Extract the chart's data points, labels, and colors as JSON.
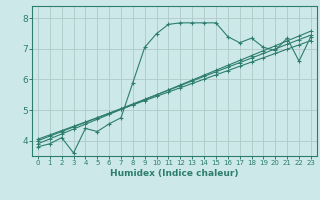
{
  "xlabel": "Humidex (Indice chaleur)",
  "bg_color": "#cce8e8",
  "grid_color": "#b0c8c8",
  "line_color": "#2d7d6f",
  "xlim": [
    -0.5,
    23.5
  ],
  "ylim": [
    3.5,
    8.4
  ],
  "xticks": [
    0,
    1,
    2,
    3,
    4,
    5,
    6,
    7,
    8,
    9,
    10,
    11,
    12,
    13,
    14,
    15,
    16,
    17,
    18,
    19,
    20,
    21,
    22,
    23
  ],
  "yticks": [
    4,
    5,
    6,
    7,
    8
  ],
  "line1_x": [
    0,
    1,
    2,
    3,
    4,
    5,
    6,
    7,
    8,
    9,
    10,
    11,
    12,
    13,
    14,
    15,
    16,
    17,
    18,
    19,
    20,
    21,
    22,
    23
  ],
  "line1_y": [
    3.8,
    3.9,
    4.1,
    3.6,
    4.4,
    4.3,
    4.55,
    4.75,
    5.9,
    7.05,
    7.5,
    7.8,
    7.85,
    7.85,
    7.85,
    7.85,
    7.4,
    7.2,
    7.35,
    7.05,
    6.95,
    7.35,
    6.6,
    7.4
  ],
  "line2_x": [
    0,
    1,
    2,
    3,
    4,
    5,
    6,
    7,
    8,
    9,
    10,
    11,
    12,
    13,
    14,
    15,
    16,
    17,
    18,
    19,
    20,
    21,
    22,
    23
  ],
  "line2_y": [
    4.0,
    4.15,
    4.3,
    4.45,
    4.6,
    4.75,
    4.9,
    5.05,
    5.2,
    5.35,
    5.5,
    5.65,
    5.8,
    5.95,
    6.1,
    6.25,
    6.4,
    6.55,
    6.7,
    6.85,
    7.0,
    7.15,
    7.3,
    7.45
  ],
  "line3_x": [
    0,
    1,
    2,
    3,
    4,
    5,
    6,
    7,
    8,
    9,
    10,
    11,
    12,
    13,
    14,
    15,
    16,
    17,
    18,
    19,
    20,
    21,
    22,
    23
  ],
  "line3_y": [
    4.05,
    4.19,
    4.33,
    4.47,
    4.61,
    4.75,
    4.89,
    5.03,
    5.17,
    5.31,
    5.45,
    5.59,
    5.73,
    5.87,
    6.01,
    6.15,
    6.29,
    6.43,
    6.57,
    6.71,
    6.85,
    6.99,
    7.13,
    7.27
  ],
  "line4_x": [
    0,
    1,
    2,
    3,
    4,
    5,
    6,
    7,
    8,
    9,
    10,
    11,
    12,
    13,
    14,
    15,
    16,
    17,
    18,
    19,
    20,
    21,
    22,
    23
  ],
  "line4_y": [
    3.9,
    4.06,
    4.22,
    4.38,
    4.54,
    4.7,
    4.86,
    5.02,
    5.18,
    5.34,
    5.5,
    5.66,
    5.82,
    5.98,
    6.14,
    6.3,
    6.46,
    6.62,
    6.78,
    6.94,
    7.1,
    7.26,
    7.42,
    7.58
  ]
}
